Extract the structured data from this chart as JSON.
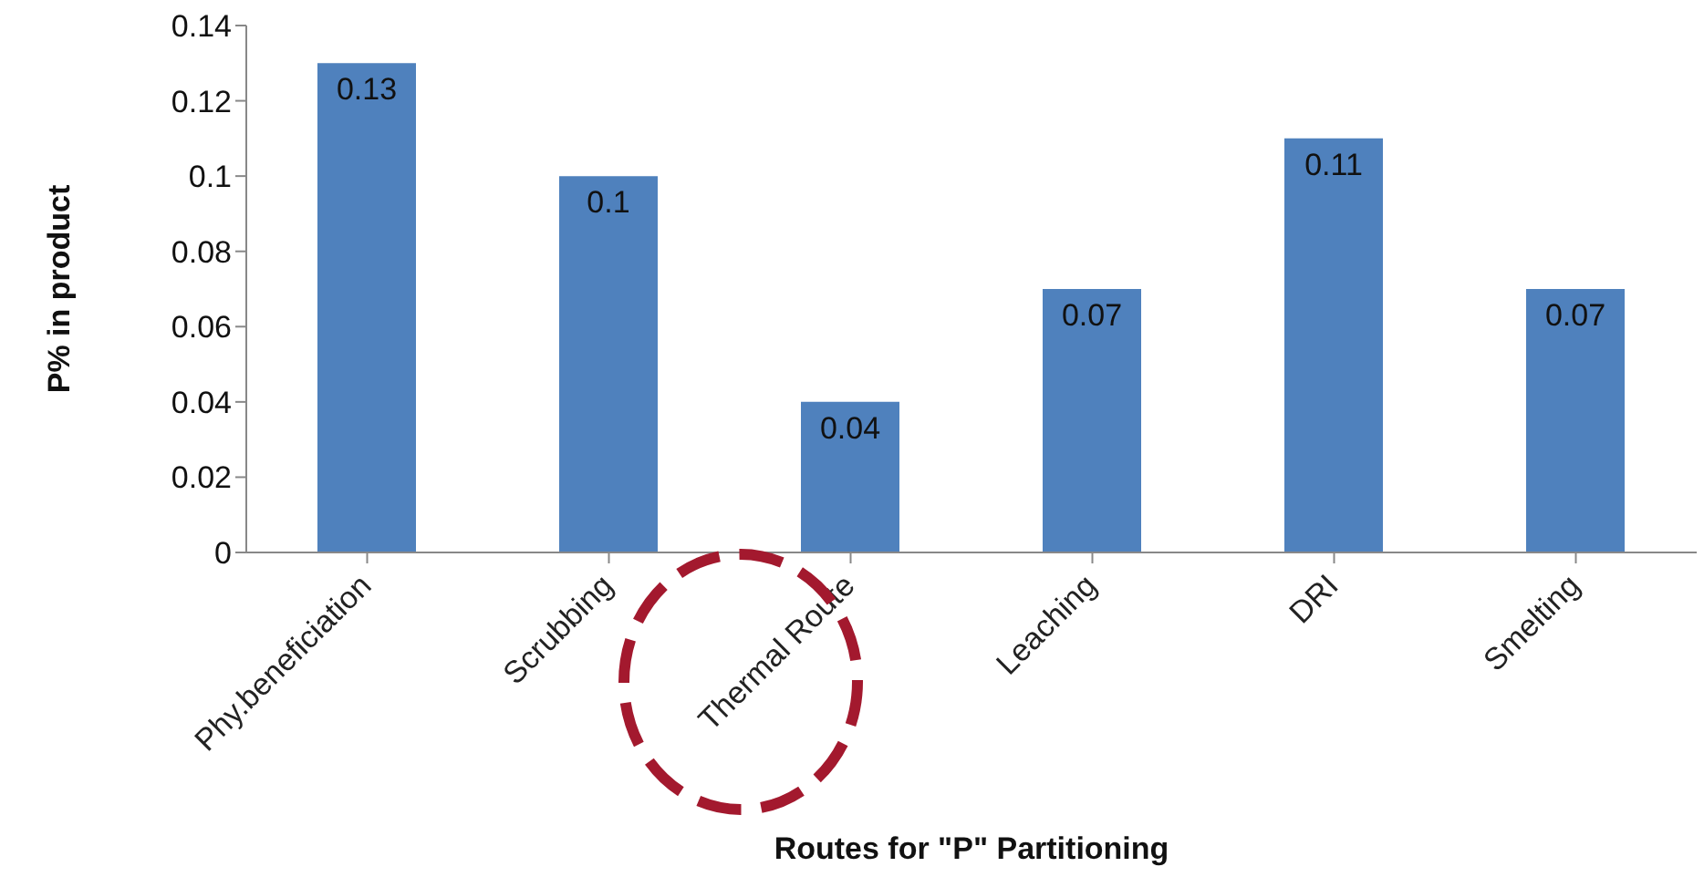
{
  "chart_data": {
    "type": "bar",
    "xlabel": "Routes for \"P\" Partitioning",
    "ylabel": "P% in product",
    "categories": [
      "Phy.beneficiation",
      "Scrubbing",
      "Thermal Route",
      "Leaching",
      "DRI",
      "Smelting"
    ],
    "values": [
      0.13,
      0.1,
      0.04,
      0.07,
      0.11,
      0.07
    ],
    "color": "#4f81bd",
    "ylim": [
      0,
      0.14
    ],
    "yticks": [
      0,
      0.02,
      0.04,
      0.06,
      0.08,
      0.1,
      0.12,
      0.14
    ],
    "grid": false,
    "data_labels": true
  }
}
